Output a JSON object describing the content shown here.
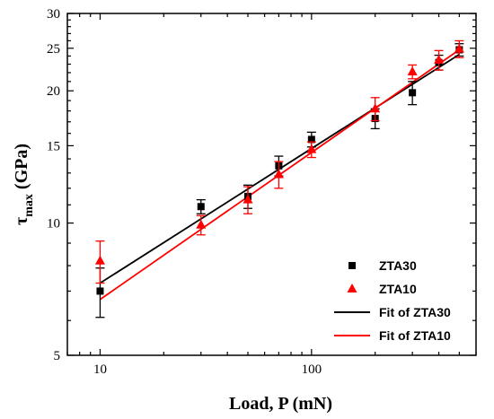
{
  "chart_data": {
    "type": "scatter",
    "xlabel": "Load, P (mN)",
    "ylabel": {
      "main": "τ",
      "sub": "max",
      "rest": " (GPa)"
    },
    "xscale": "log",
    "yscale": "log",
    "xlim": [
      7,
      600
    ],
    "ylim": [
      5,
      30
    ],
    "x_ticks": [
      10,
      100
    ],
    "x_tick_labels": [
      "10",
      "100"
    ],
    "y_ticks": [
      5,
      10,
      15,
      20,
      25,
      30
    ],
    "y_tick_labels": [
      "5",
      "10",
      "15",
      "20",
      "25",
      "30"
    ],
    "grid": false,
    "legend_position": "bottom-right",
    "series": [
      {
        "name": "ZTA30",
        "marker": "square",
        "color": "#000000",
        "x": [
          10,
          30,
          50,
          70,
          100,
          200,
          300,
          400,
          500
        ],
        "y": [
          7.0,
          10.9,
          11.5,
          13.5,
          15.5,
          17.3,
          19.8,
          23.2,
          24.8
        ],
        "err": [
          0.9,
          0.4,
          0.7,
          0.7,
          0.6,
          0.9,
          1.2,
          0.9,
          0.8
        ]
      },
      {
        "name": "ZTA10",
        "marker": "triangle",
        "color": "#ff0000",
        "x": [
          10,
          30,
          50,
          70,
          100,
          200,
          300,
          400,
          500
        ],
        "y": [
          8.2,
          9.9,
          11.3,
          12.9,
          14.7,
          18.2,
          22.1,
          23.5,
          24.9
        ],
        "err": [
          0.9,
          0.5,
          0.8,
          0.9,
          0.6,
          1.1,
          0.8,
          1.2,
          1.1
        ]
      },
      {
        "name": "Fit of ZTA30",
        "type": "line",
        "color": "#000000",
        "x": [
          10,
          500
        ],
        "y": [
          7.3,
          24.2
        ]
      },
      {
        "name": "Fit of ZTA10",
        "type": "line",
        "color": "#ff0000",
        "x": [
          10,
          500
        ],
        "y": [
          6.7,
          24.8
        ]
      }
    ]
  }
}
